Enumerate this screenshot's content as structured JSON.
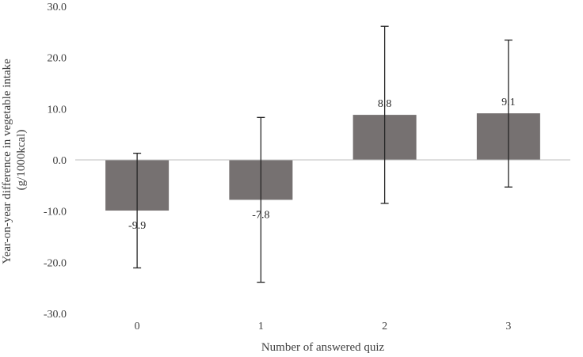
{
  "chart_data": {
    "type": "bar",
    "title": "",
    "xlabel": "Number of answered quiz",
    "ylabel_line1": "Year-on-year difference in vegetable intake",
    "ylabel_line2": "(g/1000kcal)",
    "categories": [
      "0",
      "1",
      "2",
      "3"
    ],
    "values": [
      -9.9,
      -7.8,
      8.8,
      9.1
    ],
    "value_labels": [
      "-9.9",
      "-7.8",
      "8.8",
      "9.1"
    ],
    "error_bars": [
      {
        "low": -21.1,
        "high": 1.3
      },
      {
        "low": -23.9,
        "high": 8.3
      },
      {
        "low": -8.5,
        "high": 26.1
      },
      {
        "low": -5.3,
        "high": 23.4
      }
    ],
    "ylim": [
      -30,
      30
    ],
    "yticks": [
      -30,
      -20,
      -10,
      0,
      10,
      20,
      30
    ],
    "ytick_labels": [
      "-30.0",
      "-20.0",
      "-10.0",
      "0.0",
      "10.0",
      "20.0",
      "30.0"
    ],
    "grid": false,
    "bar_color": "#767171",
    "error_color": "#262626"
  }
}
